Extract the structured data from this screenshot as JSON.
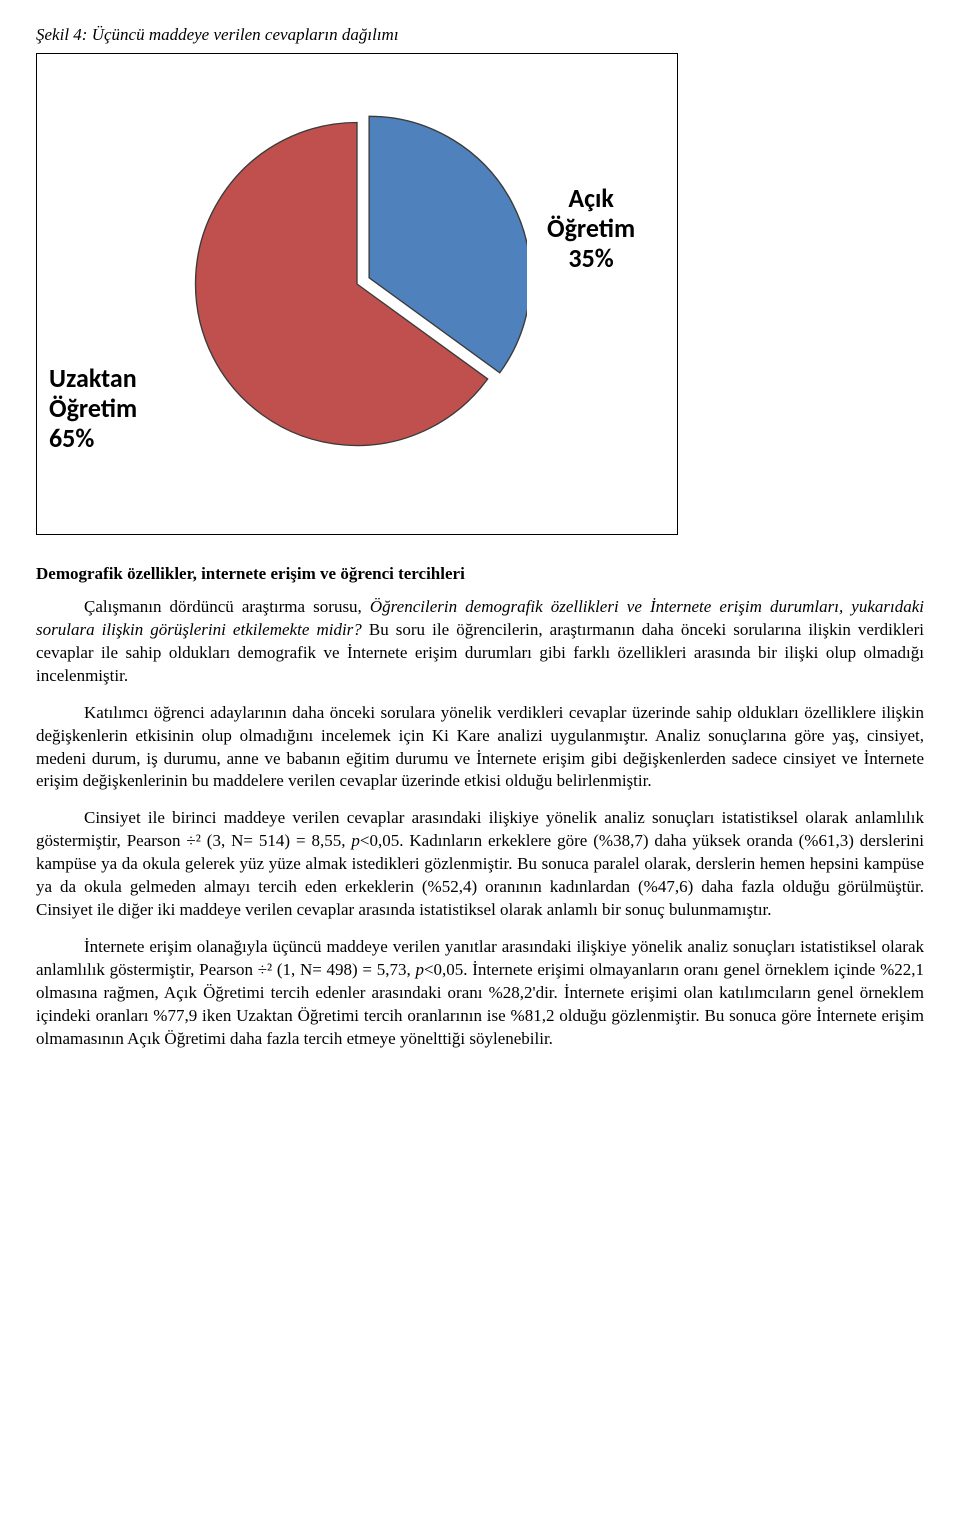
{
  "caption": "Şekil 4: Üçüncü maddeye verilen cevapların dağılımı",
  "chart": {
    "type": "pie",
    "background_color": "#ffffff",
    "border_color": "#000000",
    "slices": [
      {
        "label_line1": "Açık",
        "label_line2": "Öğretim",
        "percent_label": "35%",
        "value": 35,
        "color": "#4f81bd"
      },
      {
        "label_line1": "Uzaktan",
        "label_line2": "Öğretim",
        "percent_label": "65%",
        "value": 65,
        "color": "#c0504d"
      }
    ],
    "slice_border_color": "#3b3b3b",
    "pull_out": 8,
    "label_font_family": "Calibri",
    "label_font_weight": 700,
    "label_font_size_pt": 20,
    "label_color": "#000000"
  },
  "heading": "Demografik özellikler, internete erişim ve öğrenci tercihleri",
  "para1_a": "Çalışmanın dördüncü araştırma sorusu, ",
  "para1_b_italic": "Öğrencilerin demografik özellikleri ve İnternete erişim durumları, yukarıdaki sorulara ilişkin görüşlerini etkilemekte midir?",
  "para1_c": " Bu soru ile öğrencilerin, araştırmanın daha önceki sorularına ilişkin verdikleri cevaplar ile sahip oldukları demografik ve İnternete erişim durumları gibi farklı özellikleri arasında bir ilişki olup olmadığı incelenmiştir.",
  "para2": "Katılımcı öğrenci adaylarının daha önceki sorulara yönelik verdikleri cevaplar üzerinde sahip oldukları özelliklere ilişkin değişkenlerin etkisinin olup olmadığını incelemek için Ki Kare analizi uygulanmıştır. Analiz sonuçlarına göre yaş, cinsiyet, medeni durum, iş durumu, anne ve babanın eğitim durumu ve İnternete erişim gibi değişkenlerden sadece cinsiyet ve İnternete erişim değişkenlerinin bu maddelere verilen cevaplar üzerinde etkisi olduğu belirlenmiştir.",
  "para3_a": "Cinsiyet ile birinci maddeye verilen cevaplar arasındaki ilişkiye yönelik analiz sonuçları istatistiksel olarak anlamlılık göstermiştir, Pearson ÷² (3, N= 514) = 8,55, ",
  "para3_p": "p",
  "para3_b": "<0,05. Kadınların erkeklere göre (%38,7) daha yüksek oranda (%61,3) derslerini kampüse ya da okula gelerek yüz yüze almak istedikleri gözlenmiştir. Bu sonuca paralel olarak, derslerin hemen hepsini kampüse ya da okula gelmeden almayı tercih eden erkeklerin (%52,4) oranının kadınlardan (%47,6) daha fazla olduğu görülmüştür. Cinsiyet ile diğer iki maddeye verilen cevaplar arasında istatistiksel olarak anlamlı bir sonuç bulunmamıştır.",
  "para4_a": "İnternete erişim olanağıyla üçüncü maddeye verilen yanıtlar arasındaki ilişkiye yönelik analiz sonuçları istatistiksel olarak anlamlılık göstermiştir, Pearson ÷² (1, N= 498) = 5,73, ",
  "para4_p": "p",
  "para4_b": "<0,05. İnternete erişimi olmayanların oranı genel örneklem içinde %22,1 olmasına rağmen, Açık Öğretimi tercih edenler arasındaki oranı %28,2'dir. İnternete erişimi olan katılımcıların genel örneklem içindeki oranları %77,9 iken Uzaktan Öğretimi tercih oranlarının ise %81,2 olduğu gözlenmiştir. Bu sonuca göre İnternete erişim olmamasının Açık Öğretimi daha fazla tercih etmeye yönelttiği söylenebilir."
}
